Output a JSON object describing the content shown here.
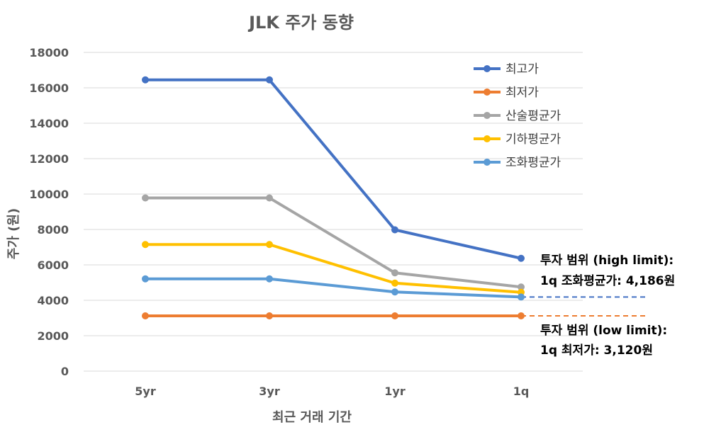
{
  "chart_data": {
    "type": "line",
    "title": "JLK  주가 동향",
    "xlabel": "최근 거래 기간",
    "ylabel": "주가 (원)",
    "categories": [
      "5yr",
      "3yr",
      "1yr",
      "1q"
    ],
    "ylim": [
      0,
      18000
    ],
    "yticks": [
      0,
      2000,
      4000,
      6000,
      8000,
      10000,
      12000,
      14000,
      16000,
      18000
    ],
    "grid": true,
    "legend_position": "top-right",
    "series": [
      {
        "name": "최고가",
        "color": "#4472C4",
        "values": [
          16450,
          16450,
          7980,
          6370
        ]
      },
      {
        "name": "최저가",
        "color": "#ED7D31",
        "values": [
          3120,
          3120,
          3120,
          3120
        ]
      },
      {
        "name": "산술평균가",
        "color": "#A5A5A5",
        "values": [
          9780,
          9780,
          5550,
          4750
        ]
      },
      {
        "name": "기하평균가",
        "color": "#FFC000",
        "values": [
          7150,
          7150,
          4970,
          4450
        ]
      },
      {
        "name": "조화평균가",
        "color": "#5B9BD5",
        "values": [
          5210,
          5210,
          4470,
          4186
        ]
      }
    ],
    "reference_lines": [
      {
        "value": 4186,
        "color": "#4472C4",
        "style": "dashed"
      },
      {
        "value": 3120,
        "color": "#ED7D31",
        "style": "dashed"
      }
    ],
    "annotations": [
      {
        "lines": [
          "투자 범위 (high limit):",
          "1q 조화평균가: 4,186원"
        ]
      },
      {
        "lines": [
          "투자 범위 (low limit):",
          "1q 최저가: 3,120원"
        ]
      }
    ]
  }
}
